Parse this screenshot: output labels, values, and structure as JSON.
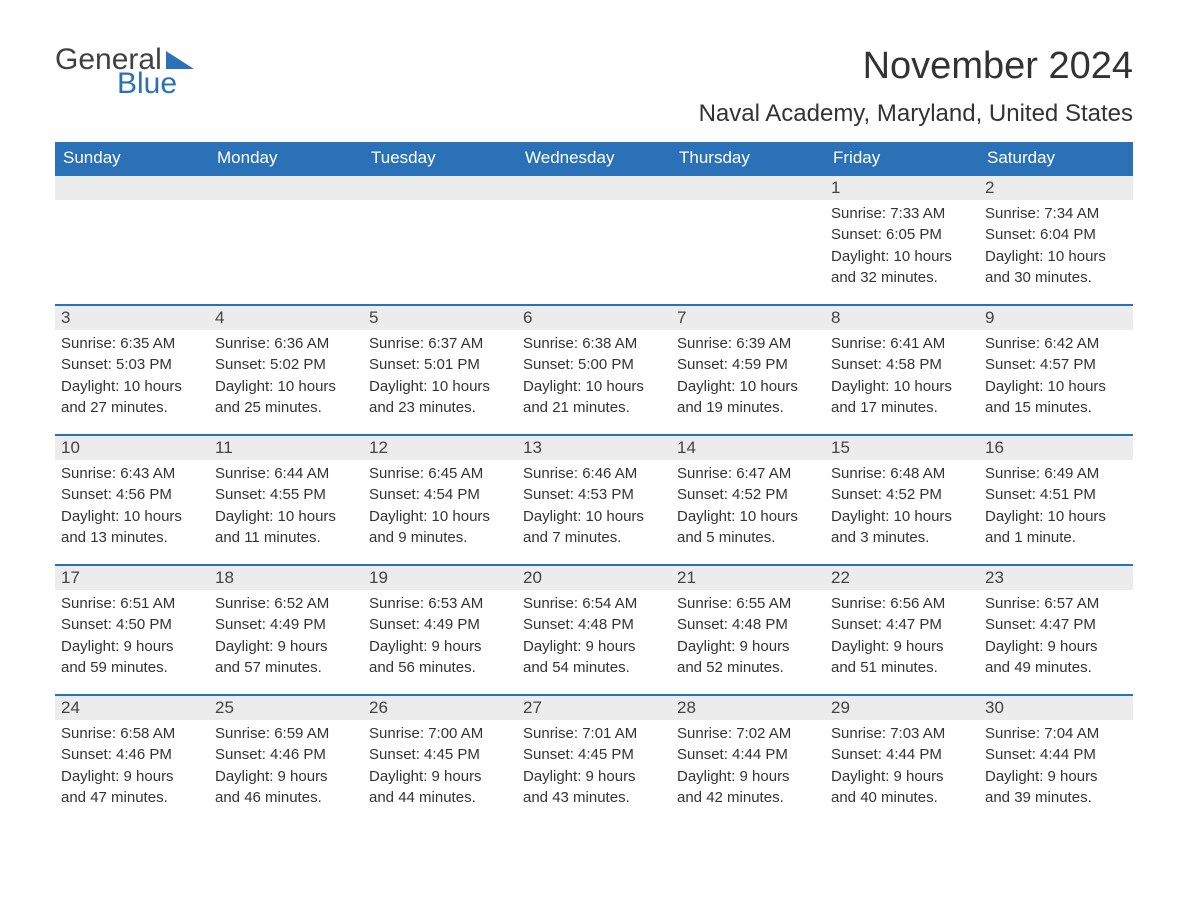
{
  "logo": {
    "word1": "General",
    "word2": "Blue"
  },
  "title": "November 2024",
  "location": "Naval Academy, Maryland, United States",
  "colors": {
    "brand_blue": "#2a71b8",
    "header_text": "#ffffff",
    "daynum_bg": "#ececec",
    "text": "#333333",
    "logo_gray": "#414141",
    "background": "#ffffff"
  },
  "typography": {
    "title_fontsize": 38,
    "location_fontsize": 24,
    "header_fontsize": 17,
    "daynum_fontsize": 17,
    "detail_fontsize": 15,
    "logo_fontsize": 30
  },
  "calendar": {
    "day_headers": [
      "Sunday",
      "Monday",
      "Tuesday",
      "Wednesday",
      "Thursday",
      "Friday",
      "Saturday"
    ],
    "weeks": [
      [
        null,
        null,
        null,
        null,
        null,
        {
          "n": "1",
          "sunrise": "7:33 AM",
          "sunset": "6:05 PM",
          "d1": "Daylight: 10 hours",
          "d2": "and 32 minutes."
        },
        {
          "n": "2",
          "sunrise": "7:34 AM",
          "sunset": "6:04 PM",
          "d1": "Daylight: 10 hours",
          "d2": "and 30 minutes."
        }
      ],
      [
        {
          "n": "3",
          "sunrise": "6:35 AM",
          "sunset": "5:03 PM",
          "d1": "Daylight: 10 hours",
          "d2": "and 27 minutes."
        },
        {
          "n": "4",
          "sunrise": "6:36 AM",
          "sunset": "5:02 PM",
          "d1": "Daylight: 10 hours",
          "d2": "and 25 minutes."
        },
        {
          "n": "5",
          "sunrise": "6:37 AM",
          "sunset": "5:01 PM",
          "d1": "Daylight: 10 hours",
          "d2": "and 23 minutes."
        },
        {
          "n": "6",
          "sunrise": "6:38 AM",
          "sunset": "5:00 PM",
          "d1": "Daylight: 10 hours",
          "d2": "and 21 minutes."
        },
        {
          "n": "7",
          "sunrise": "6:39 AM",
          "sunset": "4:59 PM",
          "d1": "Daylight: 10 hours",
          "d2": "and 19 minutes."
        },
        {
          "n": "8",
          "sunrise": "6:41 AM",
          "sunset": "4:58 PM",
          "d1": "Daylight: 10 hours",
          "d2": "and 17 minutes."
        },
        {
          "n": "9",
          "sunrise": "6:42 AM",
          "sunset": "4:57 PM",
          "d1": "Daylight: 10 hours",
          "d2": "and 15 minutes."
        }
      ],
      [
        {
          "n": "10",
          "sunrise": "6:43 AM",
          "sunset": "4:56 PM",
          "d1": "Daylight: 10 hours",
          "d2": "and 13 minutes."
        },
        {
          "n": "11",
          "sunrise": "6:44 AM",
          "sunset": "4:55 PM",
          "d1": "Daylight: 10 hours",
          "d2": "and 11 minutes."
        },
        {
          "n": "12",
          "sunrise": "6:45 AM",
          "sunset": "4:54 PM",
          "d1": "Daylight: 10 hours",
          "d2": "and 9 minutes."
        },
        {
          "n": "13",
          "sunrise": "6:46 AM",
          "sunset": "4:53 PM",
          "d1": "Daylight: 10 hours",
          "d2": "and 7 minutes."
        },
        {
          "n": "14",
          "sunrise": "6:47 AM",
          "sunset": "4:52 PM",
          "d1": "Daylight: 10 hours",
          "d2": "and 5 minutes."
        },
        {
          "n": "15",
          "sunrise": "6:48 AM",
          "sunset": "4:52 PM",
          "d1": "Daylight: 10 hours",
          "d2": "and 3 minutes."
        },
        {
          "n": "16",
          "sunrise": "6:49 AM",
          "sunset": "4:51 PM",
          "d1": "Daylight: 10 hours",
          "d2": "and 1 minute."
        }
      ],
      [
        {
          "n": "17",
          "sunrise": "6:51 AM",
          "sunset": "4:50 PM",
          "d1": "Daylight: 9 hours",
          "d2": "and 59 minutes."
        },
        {
          "n": "18",
          "sunrise": "6:52 AM",
          "sunset": "4:49 PM",
          "d1": "Daylight: 9 hours",
          "d2": "and 57 minutes."
        },
        {
          "n": "19",
          "sunrise": "6:53 AM",
          "sunset": "4:49 PM",
          "d1": "Daylight: 9 hours",
          "d2": "and 56 minutes."
        },
        {
          "n": "20",
          "sunrise": "6:54 AM",
          "sunset": "4:48 PM",
          "d1": "Daylight: 9 hours",
          "d2": "and 54 minutes."
        },
        {
          "n": "21",
          "sunrise": "6:55 AM",
          "sunset": "4:48 PM",
          "d1": "Daylight: 9 hours",
          "d2": "and 52 minutes."
        },
        {
          "n": "22",
          "sunrise": "6:56 AM",
          "sunset": "4:47 PM",
          "d1": "Daylight: 9 hours",
          "d2": "and 51 minutes."
        },
        {
          "n": "23",
          "sunrise": "6:57 AM",
          "sunset": "4:47 PM",
          "d1": "Daylight: 9 hours",
          "d2": "and 49 minutes."
        }
      ],
      [
        {
          "n": "24",
          "sunrise": "6:58 AM",
          "sunset": "4:46 PM",
          "d1": "Daylight: 9 hours",
          "d2": "and 47 minutes."
        },
        {
          "n": "25",
          "sunrise": "6:59 AM",
          "sunset": "4:46 PM",
          "d1": "Daylight: 9 hours",
          "d2": "and 46 minutes."
        },
        {
          "n": "26",
          "sunrise": "7:00 AM",
          "sunset": "4:45 PM",
          "d1": "Daylight: 9 hours",
          "d2": "and 44 minutes."
        },
        {
          "n": "27",
          "sunrise": "7:01 AM",
          "sunset": "4:45 PM",
          "d1": "Daylight: 9 hours",
          "d2": "and 43 minutes."
        },
        {
          "n": "28",
          "sunrise": "7:02 AM",
          "sunset": "4:44 PM",
          "d1": "Daylight: 9 hours",
          "d2": "and 42 minutes."
        },
        {
          "n": "29",
          "sunrise": "7:03 AM",
          "sunset": "4:44 PM",
          "d1": "Daylight: 9 hours",
          "d2": "and 40 minutes."
        },
        {
          "n": "30",
          "sunrise": "7:04 AM",
          "sunset": "4:44 PM",
          "d1": "Daylight: 9 hours",
          "d2": "and 39 minutes."
        }
      ]
    ]
  },
  "labels": {
    "sunrise_prefix": "Sunrise: ",
    "sunset_prefix": "Sunset: "
  }
}
